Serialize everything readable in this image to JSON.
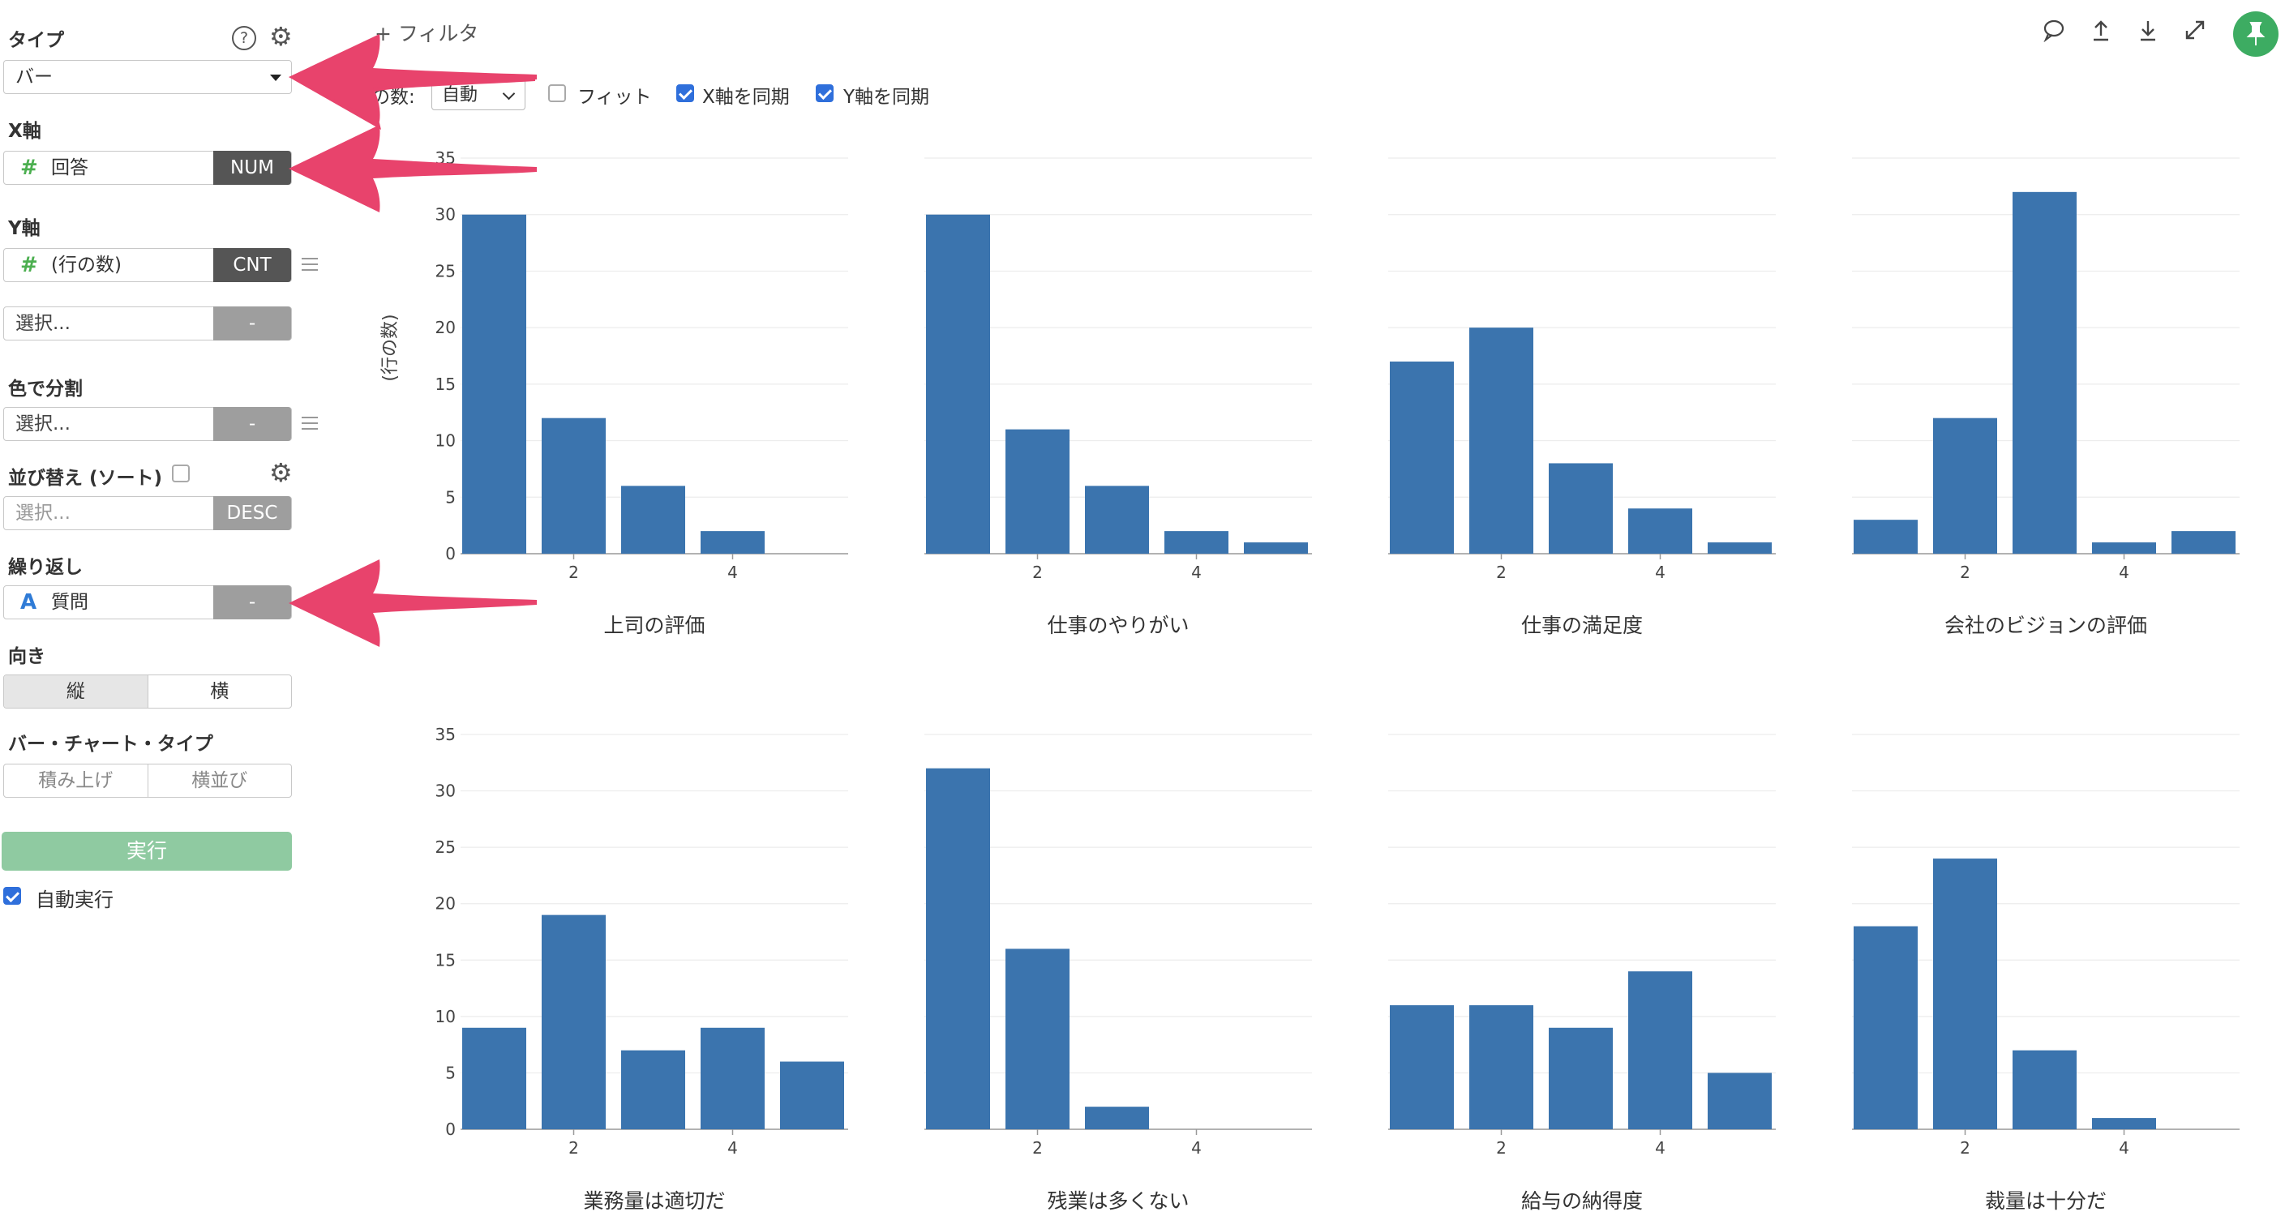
{
  "sidebar": {
    "type": {
      "label": "タイプ",
      "help_icon": "question-icon",
      "settings_icon": "gear-icon",
      "value": "バー"
    },
    "x_axis": {
      "label": "X軸",
      "field": "回答",
      "field_icon": "number-hash-icon",
      "tag": "NUM"
    },
    "y_axis": {
      "label": "Y軸",
      "field": "(行の数)",
      "field_icon": "number-hash-icon",
      "tag": "CNT",
      "extra_placeholder": "選択...",
      "extra_tag": "-"
    },
    "color_split": {
      "label": "色で分割",
      "placeholder": "選択...",
      "tag": "-"
    },
    "sort": {
      "label": "並び替え (ソート)",
      "placeholder": "選択...",
      "tag": "DESC"
    },
    "repeat": {
      "label": "繰り返し",
      "field": "質問",
      "field_icon": "text-a-icon",
      "tag": "-"
    },
    "orientation": {
      "label": "向き",
      "options": [
        "縦",
        "横"
      ],
      "active": "縦"
    },
    "bar_chart_type": {
      "label": "バー・チャート・タイプ",
      "options": [
        "積み上げ",
        "横並び"
      ]
    },
    "run_label": "実行",
    "auto_run_label": "自動実行",
    "auto_run_checked": true
  },
  "topbar": {
    "filter_label": "+ フィルタ",
    "rows_label": "の数:",
    "rows_value": "自動",
    "fit_label": "フィット",
    "fit_checked": false,
    "sync_x_label": "X軸を同期",
    "sync_x_checked": true,
    "sync_y_label": "Y軸を同期",
    "sync_y_checked": true,
    "icons": [
      "comment-icon",
      "upload-icon",
      "download-icon",
      "expand-icon",
      "pin-icon"
    ]
  },
  "colors": {
    "bar": "#3b74ae",
    "arrow": "#e8436c",
    "run": "#8fcaa1",
    "pin": "#3dac62"
  },
  "chart_data": [
    {
      "type": "bar",
      "title": "上司の評価",
      "x": [
        1,
        2,
        3,
        4,
        5
      ],
      "values": [
        30,
        12,
        6,
        2,
        null
      ],
      "ylabel": "(行の数)",
      "ylim": [
        0,
        35
      ],
      "xticks": [
        2,
        4
      ]
    },
    {
      "type": "bar",
      "title": "仕事のやりがい",
      "x": [
        1,
        2,
        3,
        4,
        5
      ],
      "values": [
        30,
        11,
        6,
        2,
        1
      ],
      "ylim": [
        0,
        35
      ],
      "xticks": [
        2,
        4
      ]
    },
    {
      "type": "bar",
      "title": "仕事の満足度",
      "x": [
        1,
        2,
        3,
        4,
        5
      ],
      "values": [
        17,
        20,
        8,
        4,
        1
      ],
      "ylim": [
        0,
        35
      ],
      "xticks": [
        2,
        4
      ]
    },
    {
      "type": "bar",
      "title": "会社のビジョンの評価",
      "x": [
        1,
        2,
        3,
        4,
        5
      ],
      "values": [
        3,
        12,
        32,
        1,
        2
      ],
      "ylim": [
        0,
        35
      ],
      "xticks": [
        2,
        4
      ]
    },
    {
      "type": "bar",
      "title": "業務量は適切だ",
      "x": [
        1,
        2,
        3,
        4,
        5
      ],
      "values": [
        9,
        19,
        7,
        9,
        6
      ],
      "ylim": [
        0,
        35
      ],
      "xticks": [
        2,
        4
      ]
    },
    {
      "type": "bar",
      "title": "残業は多くない",
      "x": [
        1,
        2,
        3,
        4,
        5
      ],
      "values": [
        32,
        16,
        2,
        null,
        null
      ],
      "ylim": [
        0,
        35
      ],
      "xticks": [
        2,
        4
      ]
    },
    {
      "type": "bar",
      "title": "給与の納得度",
      "x": [
        1,
        2,
        3,
        4,
        5
      ],
      "values": [
        11,
        11,
        9,
        14,
        5
      ],
      "ylim": [
        0,
        35
      ],
      "xticks": [
        2,
        4
      ]
    },
    {
      "type": "bar",
      "title": "裁量は十分だ",
      "x": [
        1,
        2,
        3,
        4,
        5
      ],
      "values": [
        18,
        24,
        7,
        1,
        null
      ],
      "ylim": [
        0,
        35
      ],
      "xticks": [
        2,
        4
      ]
    }
  ],
  "y_ticks": [
    0,
    5,
    10,
    15,
    20,
    25,
    30,
    35
  ]
}
